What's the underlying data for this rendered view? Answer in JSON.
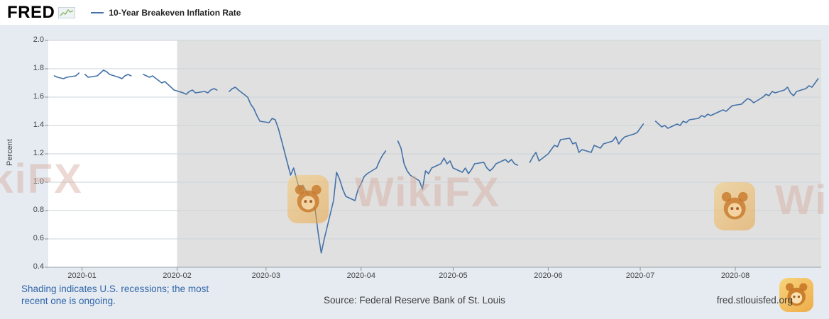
{
  "header": {
    "logo_text": "FRED",
    "logo_icon": "fred-sparkline-icon",
    "legend_label": "10-Year Breakeven Inflation Rate",
    "legend_line_color": "#4472a8"
  },
  "footer": {
    "recession_note_line1": "Shading indicates U.S. recessions; the most",
    "recession_note_line2": "recent one is ongoing.",
    "note_color": "#3366a9",
    "source_text": "Source: Federal Reserve Bank of St. Louis",
    "site_text": "fred.stlouisfed.org"
  },
  "watermark": {
    "text": "WikiFX",
    "logo_name": "wikifx-panda-logo"
  },
  "chart_data": {
    "type": "line",
    "title": "10-Year Breakeven Inflation Rate",
    "ylabel": "Percent",
    "ylim": [
      0.4,
      2.0
    ],
    "ytick_labels": [
      "2.0",
      "1.8",
      "1.6",
      "1.4",
      "1.2",
      "1.0",
      "0.8",
      "0.6",
      "0.4"
    ],
    "xtick_labels": [
      "2020-01",
      "2020-02",
      "2020-03",
      "2020-04",
      "2020-05",
      "2020-06",
      "2020-07",
      "2020-08"
    ],
    "x_range": [
      "2019-12-21",
      "2020-08-29"
    ],
    "grid": true,
    "legend_position": "top-left",
    "line_color": "#4472a8",
    "page_background": "#e5ebf1",
    "recession_shading": {
      "start": "2020-02-01",
      "ongoing": true,
      "color": "#e0e0e0"
    },
    "series": [
      {
        "name": "10-Year Breakeven Inflation Rate",
        "dates": [
          "2019-12-23",
          "2019-12-24",
          "2019-12-26",
          "2019-12-27",
          "2019-12-30",
          "2019-12-31",
          "2020-01-01",
          "2020-01-02",
          "2020-01-03",
          "2020-01-06",
          "2020-01-07",
          "2020-01-08",
          "2020-01-09",
          "2020-01-10",
          "2020-01-13",
          "2020-01-14",
          "2020-01-15",
          "2020-01-16",
          "2020-01-17",
          "2020-01-20",
          "2020-01-21",
          "2020-01-22",
          "2020-01-23",
          "2020-01-24",
          "2020-01-27",
          "2020-01-28",
          "2020-01-29",
          "2020-01-30",
          "2020-01-31",
          "2020-02-03",
          "2020-02-04",
          "2020-02-05",
          "2020-02-06",
          "2020-02-07",
          "2020-02-10",
          "2020-02-11",
          "2020-02-12",
          "2020-02-13",
          "2020-02-14",
          "2020-02-17",
          "2020-02-18",
          "2020-02-19",
          "2020-02-20",
          "2020-02-21",
          "2020-02-24",
          "2020-02-25",
          "2020-02-26",
          "2020-02-27",
          "2020-02-28",
          "2020-03-02",
          "2020-03-03",
          "2020-03-04",
          "2020-03-05",
          "2020-03-06",
          "2020-03-09",
          "2020-03-10",
          "2020-03-11",
          "2020-03-12",
          "2020-03-13",
          "2020-03-16",
          "2020-03-17",
          "2020-03-18",
          "2020-03-19",
          "2020-03-20",
          "2020-03-23",
          "2020-03-24",
          "2020-03-25",
          "2020-03-26",
          "2020-03-27",
          "2020-03-30",
          "2020-03-31",
          "2020-04-01",
          "2020-04-02",
          "2020-04-03",
          "2020-04-06",
          "2020-04-07",
          "2020-04-08",
          "2020-04-09",
          "2020-04-10",
          "2020-04-13",
          "2020-04-14",
          "2020-04-15",
          "2020-04-16",
          "2020-04-17",
          "2020-04-20",
          "2020-04-21",
          "2020-04-22",
          "2020-04-23",
          "2020-04-24",
          "2020-04-27",
          "2020-04-28",
          "2020-04-29",
          "2020-04-30",
          "2020-05-01",
          "2020-05-04",
          "2020-05-05",
          "2020-05-06",
          "2020-05-07",
          "2020-05-08",
          "2020-05-11",
          "2020-05-12",
          "2020-05-13",
          "2020-05-14",
          "2020-05-15",
          "2020-05-18",
          "2020-05-19",
          "2020-05-20",
          "2020-05-21",
          "2020-05-22",
          "2020-05-25",
          "2020-05-26",
          "2020-05-27",
          "2020-05-28",
          "2020-05-29",
          "2020-06-01",
          "2020-06-02",
          "2020-06-03",
          "2020-06-04",
          "2020-06-05",
          "2020-06-08",
          "2020-06-09",
          "2020-06-10",
          "2020-06-11",
          "2020-06-12",
          "2020-06-15",
          "2020-06-16",
          "2020-06-17",
          "2020-06-18",
          "2020-06-19",
          "2020-06-22",
          "2020-06-23",
          "2020-06-24",
          "2020-06-25",
          "2020-06-26",
          "2020-06-29",
          "2020-06-30",
          "2020-07-01",
          "2020-07-02",
          "2020-07-03",
          "2020-07-06",
          "2020-07-07",
          "2020-07-08",
          "2020-07-09",
          "2020-07-10",
          "2020-07-13",
          "2020-07-14",
          "2020-07-15",
          "2020-07-16",
          "2020-07-17",
          "2020-07-20",
          "2020-07-21",
          "2020-07-22",
          "2020-07-23",
          "2020-07-24",
          "2020-07-27",
          "2020-07-28",
          "2020-07-29",
          "2020-07-30",
          "2020-07-31",
          "2020-08-03",
          "2020-08-04",
          "2020-08-05",
          "2020-08-06",
          "2020-08-07",
          "2020-08-10",
          "2020-08-11",
          "2020-08-12",
          "2020-08-13",
          "2020-08-14",
          "2020-08-17",
          "2020-08-18",
          "2020-08-19",
          "2020-08-20",
          "2020-08-21",
          "2020-08-24",
          "2020-08-25",
          "2020-08-26",
          "2020-08-27",
          "2020-08-28"
        ],
        "values": [
          1.75,
          1.74,
          1.73,
          1.74,
          1.75,
          1.77,
          null,
          1.76,
          1.74,
          1.75,
          1.77,
          1.79,
          1.78,
          1.76,
          1.74,
          1.73,
          1.75,
          1.76,
          1.75,
          null,
          1.76,
          1.75,
          1.74,
          1.75,
          1.7,
          1.71,
          1.69,
          1.67,
          1.65,
          1.63,
          1.62,
          1.64,
          1.65,
          1.63,
          1.64,
          1.63,
          1.65,
          1.66,
          1.65,
          null,
          1.64,
          1.66,
          1.67,
          1.65,
          1.6,
          1.55,
          1.52,
          1.47,
          1.43,
          1.42,
          1.45,
          1.44,
          1.38,
          1.3,
          1.05,
          1.1,
          1.02,
          0.94,
          0.98,
          0.86,
          0.81,
          0.64,
          0.5,
          0.6,
          0.87,
          1.07,
          1.02,
          0.95,
          0.9,
          0.87,
          0.95,
          0.99,
          1.04,
          1.06,
          1.1,
          1.15,
          1.19,
          1.22,
          null,
          1.29,
          1.24,
          1.13,
          1.08,
          1.05,
          1.01,
          0.95,
          1.08,
          1.06,
          1.1,
          1.13,
          1.17,
          1.13,
          1.15,
          1.1,
          1.07,
          1.1,
          1.06,
          1.09,
          1.13,
          1.14,
          1.1,
          1.08,
          1.1,
          1.13,
          1.16,
          1.14,
          1.16,
          1.13,
          1.12,
          null,
          1.14,
          1.18,
          1.21,
          1.15,
          1.2,
          1.23,
          1.26,
          1.25,
          1.3,
          1.31,
          1.27,
          1.28,
          1.21,
          1.23,
          1.21,
          1.26,
          1.25,
          1.24,
          1.27,
          1.29,
          1.32,
          1.27,
          1.3,
          1.32,
          1.34,
          1.35,
          1.38,
          1.41,
          null,
          1.43,
          1.41,
          1.39,
          1.4,
          1.38,
          1.41,
          1.4,
          1.43,
          1.42,
          1.44,
          1.45,
          1.47,
          1.46,
          1.48,
          1.47,
          1.5,
          1.51,
          1.5,
          1.52,
          1.54,
          1.55,
          1.57,
          1.59,
          1.58,
          1.56,
          1.6,
          1.62,
          1.61,
          1.64,
          1.63,
          1.65,
          1.67,
          1.63,
          1.61,
          1.64,
          1.66,
          1.68,
          1.67,
          1.7,
          1.73
        ]
      }
    ]
  }
}
